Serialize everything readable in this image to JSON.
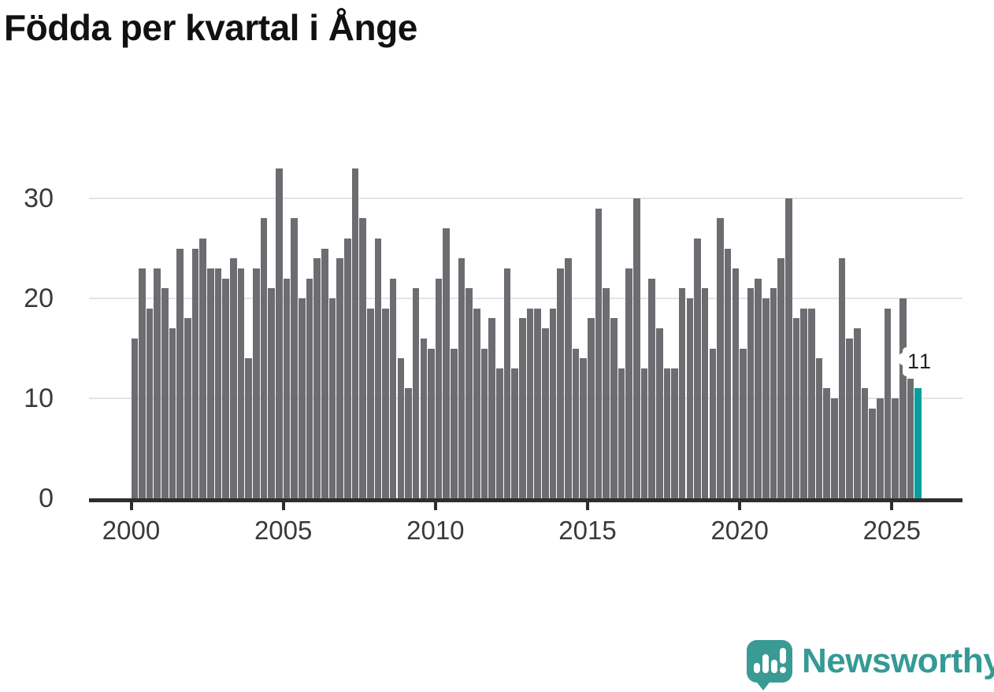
{
  "title": "Födda per kvartal i Ånge",
  "chart_data": {
    "type": "bar",
    "title": "Födda per kvartal i Ånge",
    "xlabel": "",
    "ylabel": "",
    "x_tick_labels": [
      "2000",
      "2005",
      "2010",
      "2015",
      "2020",
      "2025"
    ],
    "y_tick_labels": [
      "0",
      "10",
      "20",
      "30"
    ],
    "ylim": [
      0,
      34
    ],
    "grid": "horizontal",
    "period": "quarterly",
    "range": "2000 Q1 - 2025 Q4",
    "series": [
      {
        "name": "Födda",
        "values": [
          16,
          23,
          19,
          23,
          21,
          17,
          25,
          18,
          25,
          26,
          23,
          23,
          22,
          24,
          23,
          14,
          23,
          28,
          21,
          33,
          22,
          28,
          20,
          22,
          24,
          25,
          20,
          24,
          26,
          33,
          28,
          19,
          26,
          19,
          22,
          14,
          11,
          21,
          16,
          15,
          22,
          27,
          15,
          24,
          21,
          19,
          15,
          18,
          13,
          23,
          13,
          18,
          19,
          19,
          17,
          19,
          23,
          24,
          15,
          14,
          18,
          29,
          21,
          18,
          13,
          23,
          30,
          13,
          22,
          17,
          13,
          13,
          21,
          20,
          26,
          21,
          15,
          28,
          25,
          23,
          15,
          21,
          22,
          20,
          21,
          24,
          30,
          18,
          19,
          19,
          14,
          11,
          10,
          24,
          16,
          17,
          11,
          9,
          10,
          19,
          10,
          20,
          12,
          11
        ]
      }
    ],
    "highlight_last_value": 11,
    "annotation": {
      "label": "11"
    },
    "colors": {
      "bar": "#6c6c71",
      "highlight": "#089e9e",
      "gridline": "#e4e4e4",
      "axis": "#2e2e2e",
      "label": "#3a3a3a"
    }
  },
  "callout": {
    "label": "11"
  },
  "footer": {
    "brand": "Newsworthy",
    "brand_color": "#3a9a94"
  }
}
